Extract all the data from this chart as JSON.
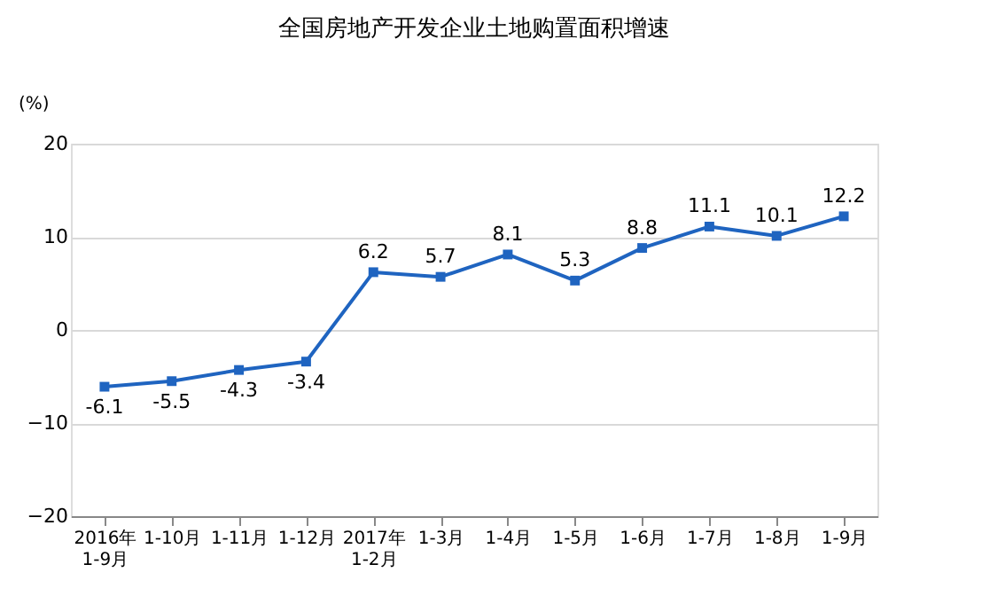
{
  "chart_data": {
    "type": "line",
    "title": "全国房地产开发企业土地购置面积增速",
    "ylabel": "(%)",
    "categories": [
      "2016年\n1-9月",
      "1-10月",
      "1-11月",
      "1-12月",
      "2017年\n1-2月",
      "1-3月",
      "1-4月",
      "1-5月",
      "1-6月",
      "1-7月",
      "1-8月",
      "1-9月"
    ],
    "series": [
      {
        "color": "#1f64c0",
        "values": [
          -6.1,
          -5.5,
          -4.3,
          -3.4,
          6.2,
          5.7,
          8.1,
          5.3,
          8.8,
          11.1,
          10.1,
          12.2
        ]
      }
    ],
    "ylim": [
      -20,
      20
    ],
    "yticks": [
      -20,
      -10,
      0,
      10,
      20
    ],
    "grid": "y",
    "marker": "square",
    "line_style": "solid",
    "data_labels": true
  }
}
